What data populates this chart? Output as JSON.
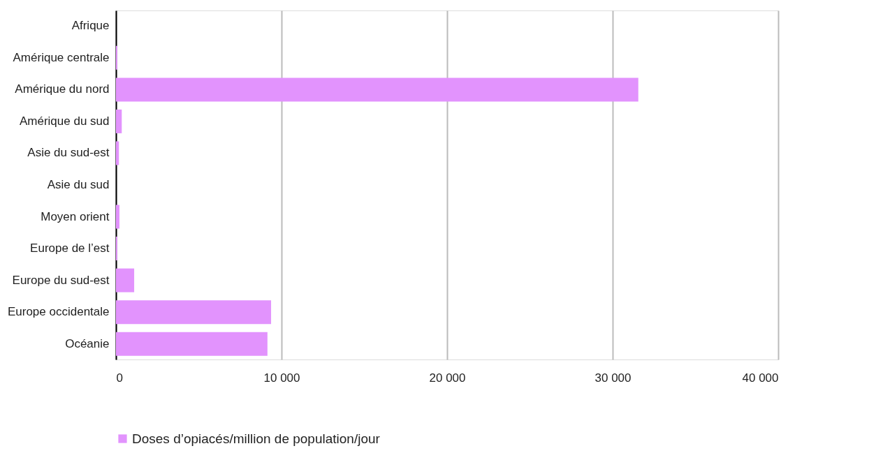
{
  "chart_data": {
    "type": "bar",
    "orientation": "horizontal",
    "categories": [
      "Afrique",
      "Amérique centrale",
      "Amérique du nord",
      "Amérique du sud",
      "Asie du sud-est",
      "Asie du sud",
      "Moyen orient",
      "Europe de l’est",
      "Europe du sud-est",
      "Europe occidentale",
      "Océanie"
    ],
    "series": [
      {
        "name": "Doses d’opiacés/million de population/jour",
        "color": "#e293fd",
        "values": [
          null,
          80,
          31550,
          350,
          180,
          null,
          210,
          80,
          1100,
          9370,
          9150
        ]
      }
    ],
    "xlim": [
      0,
      40000
    ],
    "xticks": [
      {
        "value": 0,
        "label": "0"
      },
      {
        "value": 10000,
        "label": "10 000"
      },
      {
        "value": 20000,
        "label": "20 000"
      },
      {
        "value": 30000,
        "label": "30 000"
      },
      {
        "value": 40000,
        "label": "40 000"
      }
    ],
    "grid": "x",
    "legend": "bottom"
  }
}
